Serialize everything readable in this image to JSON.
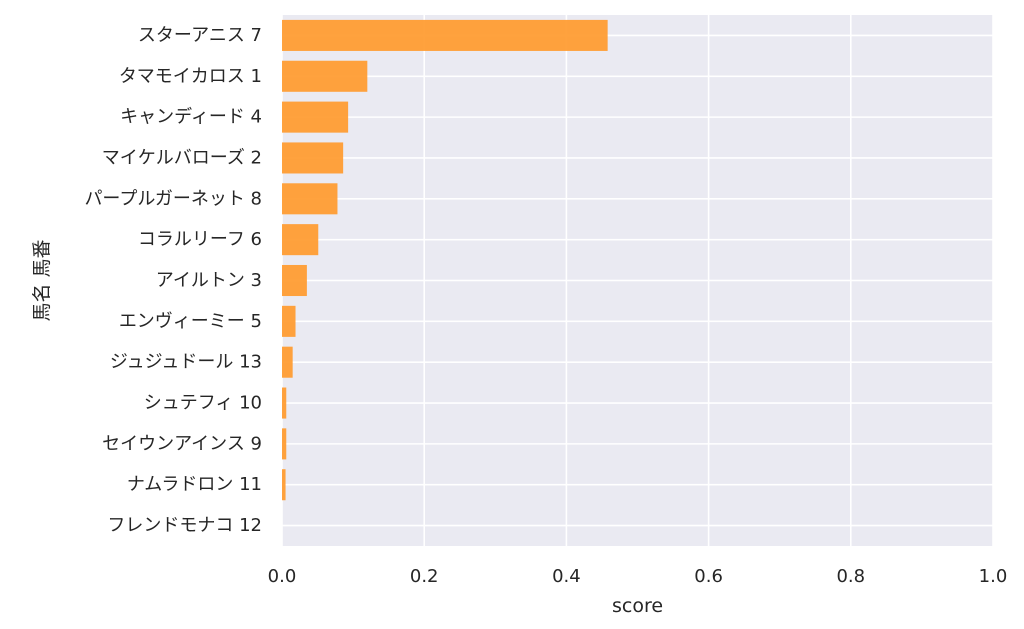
{
  "chart_data": {
    "type": "bar",
    "orientation": "horizontal",
    "categories": [
      "スターアニス 7",
      "タマモイカロス 1",
      "キャンディード 4",
      "マイケルバローズ 2",
      "パープルガーネット 8",
      "コラルリーフ 6",
      "アイルトン 3",
      "エンヴィーミー 5",
      "ジュジュドール 13",
      "シュテフィ 10",
      "セイウンアインス 9",
      "ナムラドロン 11",
      "フレンドモナコ 12"
    ],
    "values": [
      0.458,
      0.12,
      0.093,
      0.086,
      0.078,
      0.051,
      0.035,
      0.019,
      0.015,
      0.006,
      0.006,
      0.005,
      0.0
    ],
    "xlabel": "score",
    "ylabel": "馬名 馬番",
    "xlim": [
      0,
      1.0
    ],
    "xticks": [
      "0.0",
      "0.2",
      "0.4",
      "0.6",
      "0.8",
      "1.0"
    ],
    "grid": true,
    "colors": {
      "bar": "#ff9a2e",
      "background": "#eaeaf2",
      "grid": "#ffffff",
      "text": "#262626"
    }
  }
}
